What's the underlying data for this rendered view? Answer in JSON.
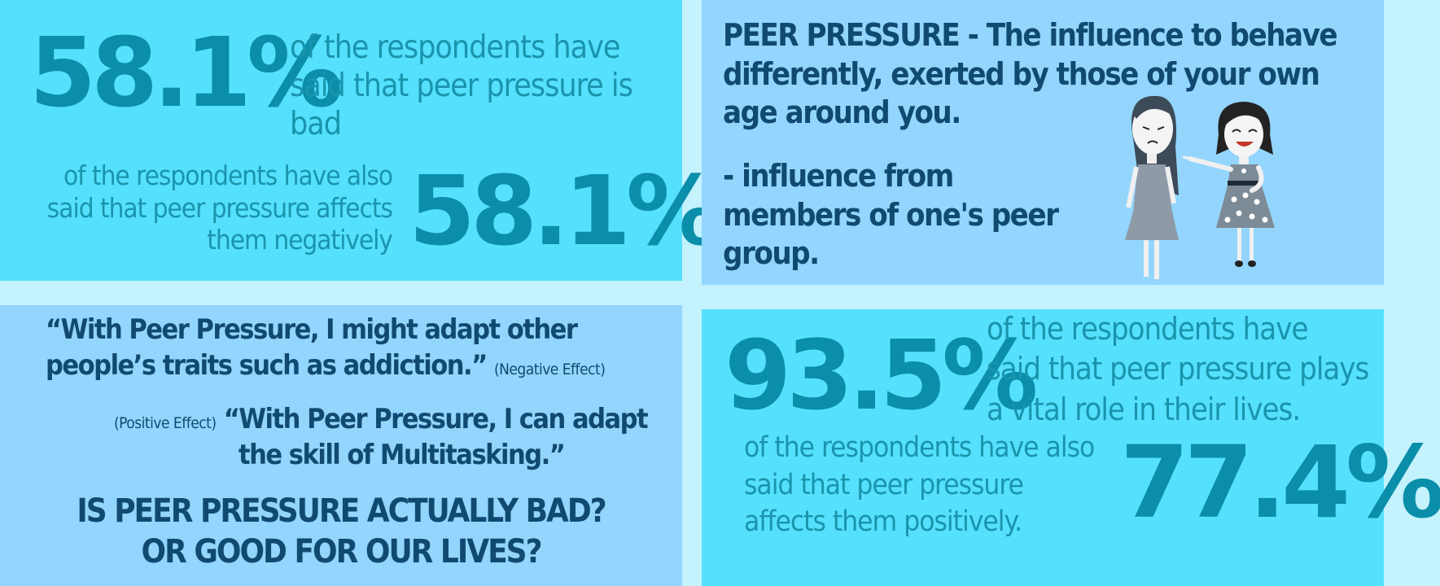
{
  "stat_top_left": {
    "percent_1": "58.1%",
    "text_1": "of the respondents have said that peer pressure is bad",
    "text_2": "of the respondents have also said that peer pressure affects them negatively",
    "percent_2": "58.1%"
  },
  "definition": {
    "term": "PEER PRESSURE",
    "text": " - The influence to behave differently, exerted by those of your own age around you.",
    "sub_text": "- influence from members of one's peer group."
  },
  "quotes": {
    "quote_1": "“With Peer Pressure, I might adapt other people’s traits such as addiction.”",
    "quote_1_tag": "(Negative Effect)",
    "quote_2_tag": "(Positive Effect)",
    "quote_2_line_1": "“With Peer Pressure, I can adapt",
    "quote_2_line_2": "the skill of Multitasking.”",
    "question_line_1": "IS PEER PRESSURE ACTUALLY BAD?",
    "question_line_2": "OR GOOD FOR OUR LIVES?"
  },
  "stat_bottom_right": {
    "percent_1": "93.5%",
    "text_1": "of the respondents have said that peer pressure plays a vital role in their lives.",
    "text_2": "of the respondents have also said that peer pressure affects them positively.",
    "percent_2": "77.4%"
  },
  "colors": {
    "panel_cyan": "#55e0fd",
    "panel_light_blue": "#93d5fd",
    "gutter": "#c4f2fd",
    "stat_teal": "#0a8ea9",
    "text_navy": "#114a70"
  },
  "illustration": {
    "icon": "two-girls-illustration-icon"
  }
}
